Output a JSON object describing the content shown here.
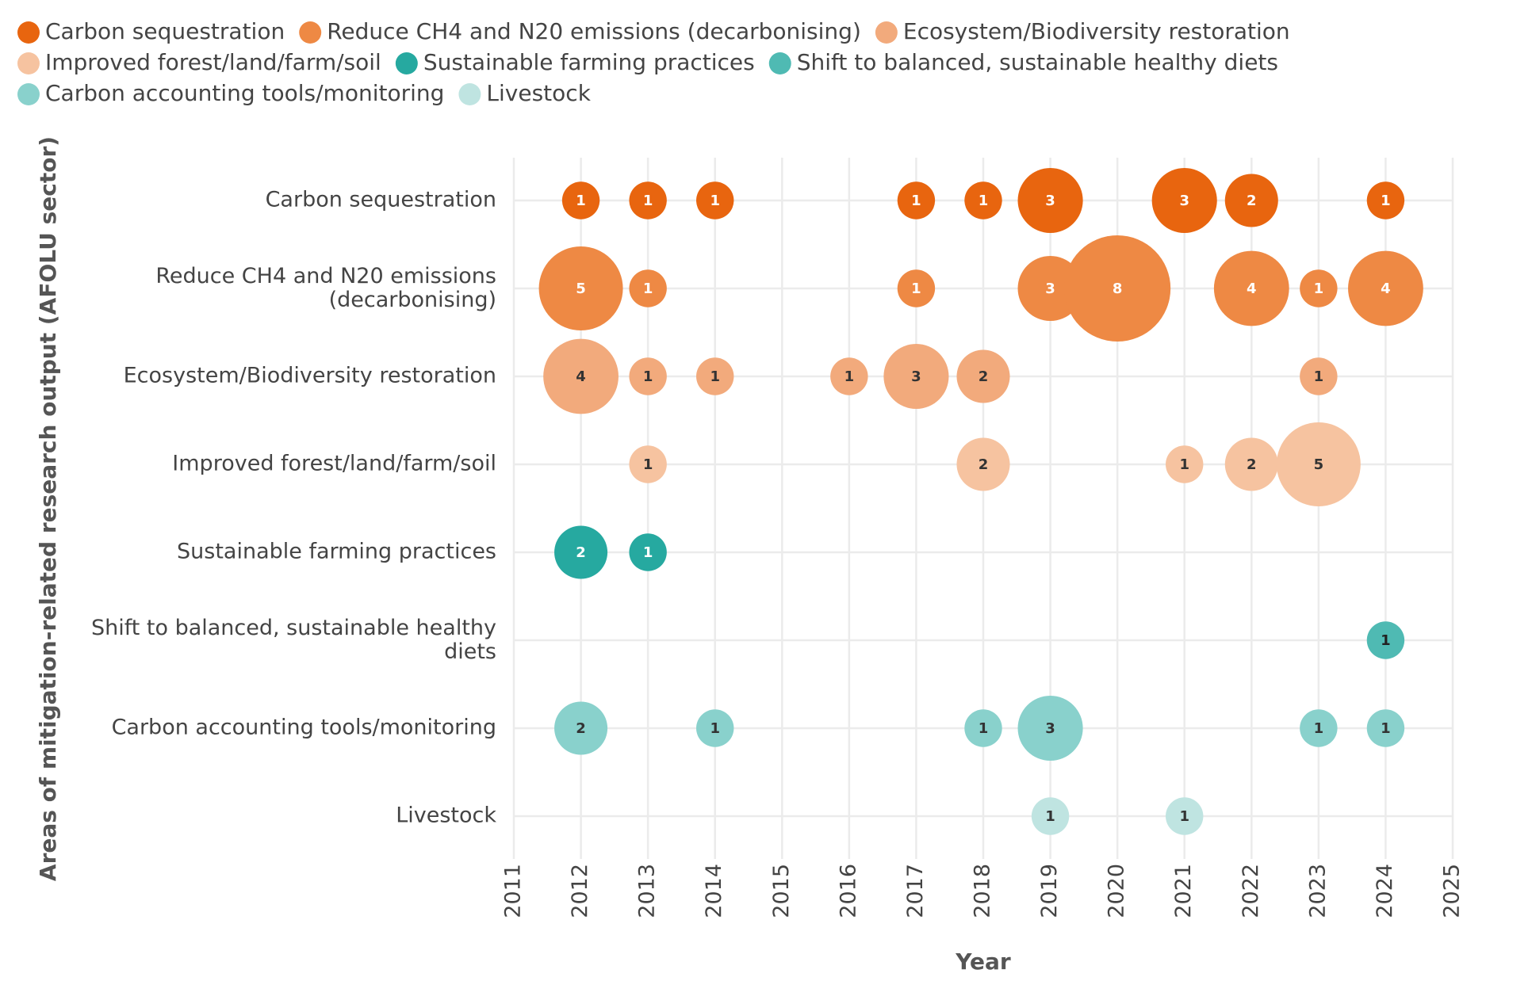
{
  "chart_data": {
    "type": "bubble",
    "x_label": "Year",
    "y_label": "Areas of mitigation-related research output (AFOLU sector)",
    "categories": [
      "Carbon sequestration",
      "Reduce CH4 and N20 emissions (decarbonising)",
      "Ecosystem/Biodiversity restoration",
      "Improved forest/land/farm/soil",
      "Sustainable farming practices",
      "Shift to balanced, sustainable healthy diets",
      "Carbon accounting tools/monitoring",
      "Livestock"
    ],
    "xlim": [
      2011,
      2025
    ],
    "xticks": [
      2011,
      2012,
      2013,
      2014,
      2015,
      2016,
      2017,
      2018,
      2019,
      2020,
      2021,
      2022,
      2023,
      2024,
      2025
    ],
    "grid": true,
    "legend": "top",
    "series": [
      {
        "name": "Carbon sequestration",
        "color": "#e8650f",
        "label_color": "#ffffff",
        "x": [
          2012,
          2013,
          2014,
          2017,
          2018,
          2019,
          2021,
          2022,
          2024
        ],
        "values": [
          1,
          1,
          1,
          1,
          1,
          3,
          3,
          2,
          1
        ]
      },
      {
        "name": "Reduce CH4 and N20 emissions (decarbonising)",
        "color": "#ee8944",
        "label_color": "#ffffff",
        "x": [
          2012,
          2013,
          2017,
          2019,
          2020,
          2022,
          2023,
          2024
        ],
        "values": [
          5,
          1,
          1,
          3,
          8,
          4,
          1,
          4
        ]
      },
      {
        "name": "Ecosystem/Biodiversity restoration",
        "color": "#f2aa7c",
        "label_color": "#333333",
        "x": [
          2012,
          2013,
          2014,
          2016,
          2017,
          2018,
          2023
        ],
        "values": [
          4,
          1,
          1,
          1,
          3,
          2,
          1
        ]
      },
      {
        "name": "Improved forest/land/farm/soil",
        "color": "#f6c3a0",
        "label_color": "#333333",
        "x": [
          2013,
          2018,
          2021,
          2022,
          2023
        ],
        "values": [
          1,
          2,
          1,
          2,
          5
        ]
      },
      {
        "name": "Sustainable farming practices",
        "color": "#26a9a0",
        "label_color": "#ffffff",
        "x": [
          2012,
          2013
        ],
        "values": [
          2,
          1
        ]
      },
      {
        "name": "Shift to balanced, sustainable healthy diets",
        "color": "#4fbab3",
        "label_color": "#222222",
        "x": [
          2024
        ],
        "values": [
          1
        ]
      },
      {
        "name": "Carbon accounting tools/monitoring",
        "color": "#89d1cc",
        "label_color": "#333333",
        "x": [
          2012,
          2014,
          2018,
          2019,
          2023,
          2024
        ],
        "values": [
          2,
          1,
          1,
          3,
          1,
          1
        ]
      },
      {
        "name": "Livestock",
        "color": "#bfe4e1",
        "label_color": "#333333",
        "x": [
          2019,
          2021
        ],
        "values": [
          1,
          1
        ]
      }
    ]
  }
}
